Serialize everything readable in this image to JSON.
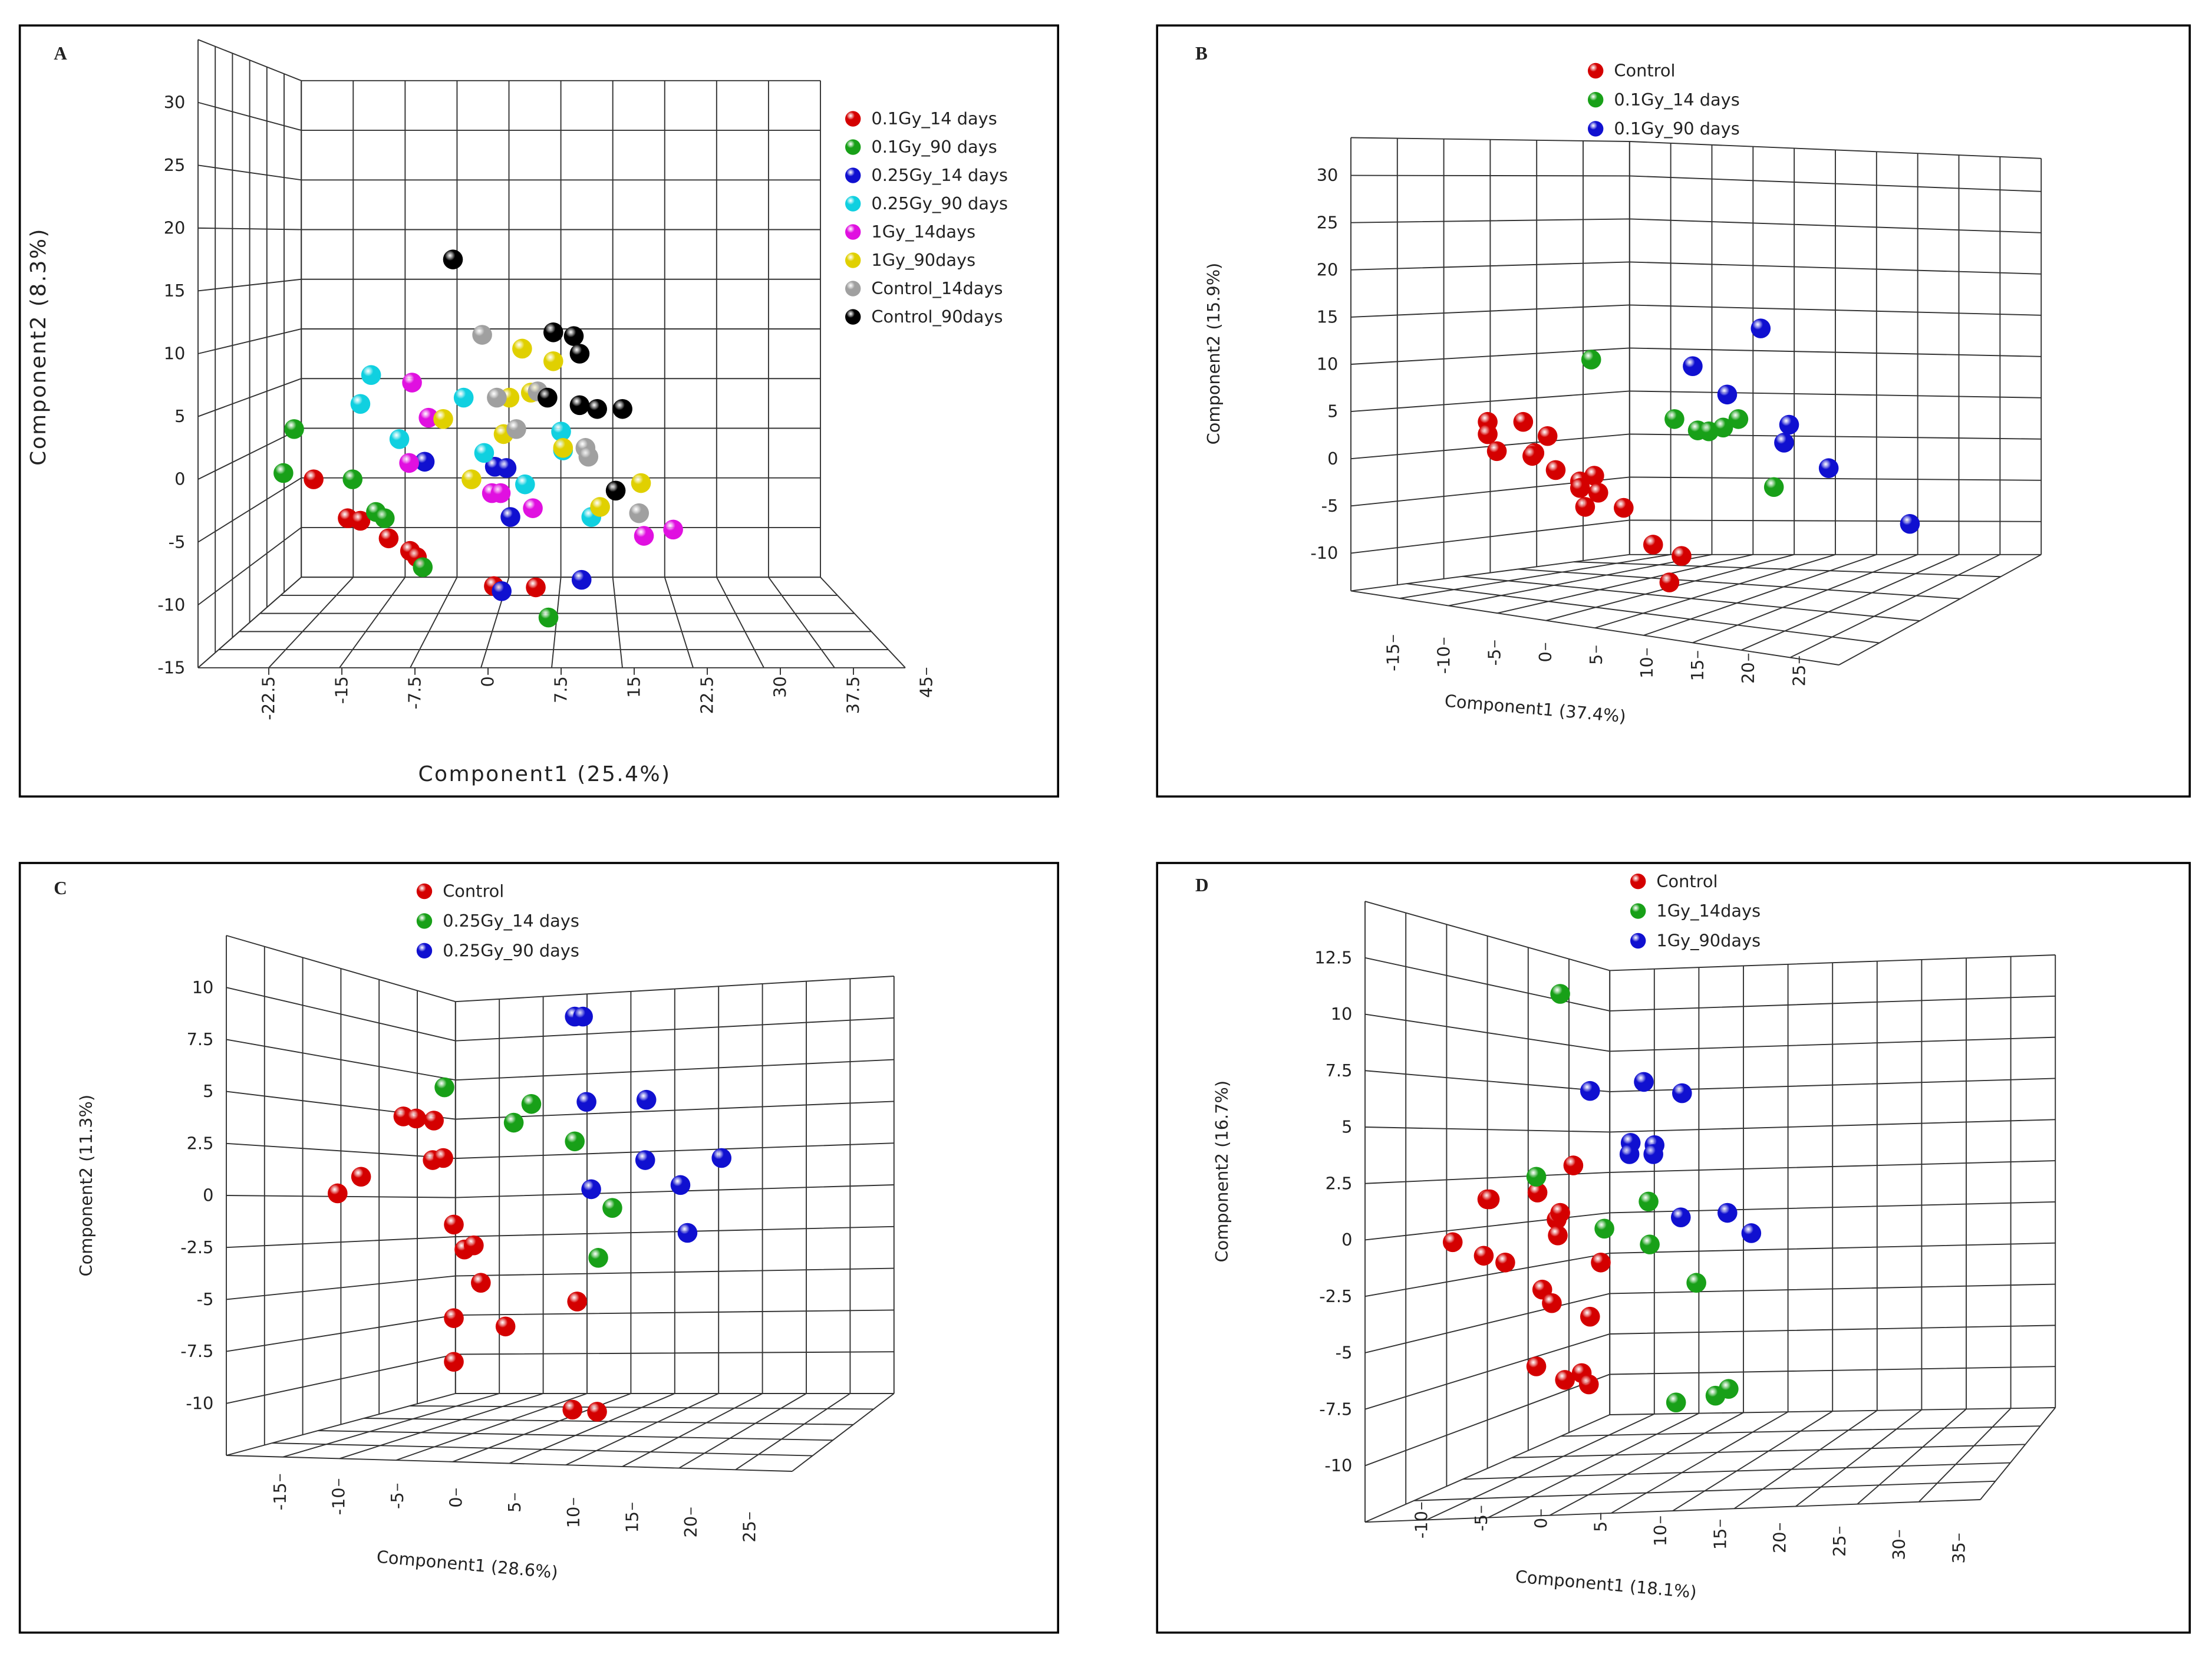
{
  "chart_data": [
    {
      "type": "scatter",
      "label": "A",
      "x_label": "Component1 (25.4%)",
      "y_label": "Component2 (8.3%)",
      "xlim": [
        -25,
        47.5
      ],
      "ylim": [
        -15,
        35
      ],
      "xticks": [
        -22.5,
        -15,
        -7.5,
        0,
        7.5,
        15,
        22.5,
        30,
        37.5,
        45
      ],
      "yticks": [
        -15,
        -10,
        -5,
        0,
        5,
        10,
        15,
        20,
        25,
        30
      ],
      "series": [
        {
          "name": "0.1Gy_14 days",
          "color": "#d40000",
          "x": [
            -17.9,
            -14.4,
            -13.1,
            -10.2,
            -8.0,
            -7.3,
            0.6,
            4.9
          ],
          "y": [
            0.0,
            -3.1,
            -3.3,
            -4.7,
            -5.7,
            -6.2,
            -8.5,
            -8.6
          ]
        },
        {
          "name": "0.1Gy_90 days",
          "color": "#18a018",
          "x": [
            -19.9,
            -21.0,
            -13.9,
            -11.5,
            -10.6,
            -6.7,
            6.2
          ],
          "y": [
            4.0,
            0.5,
            0.0,
            -2.6,
            -3.1,
            -7.0,
            -11.0
          ]
        },
        {
          "name": "0.25Gy_14 days",
          "color": "#1010d0",
          "x": [
            -6.5,
            0.7,
            1.9,
            2.3,
            9.6,
            1.4
          ],
          "y": [
            1.4,
            1.0,
            0.9,
            -3.0,
            -8.0,
            -8.9
          ]
        },
        {
          "name": "0.25Gy_90 days",
          "color": "#10d0e0",
          "x": [
            -12.0,
            -13.1,
            -9.1,
            -2.5,
            -0.4,
            3.8,
            7.5,
            7.7,
            10.6
          ],
          "y": [
            8.3,
            6.0,
            3.2,
            6.5,
            2.1,
            -0.4,
            3.8,
            2.3,
            -3.0
          ]
        },
        {
          "name": "1Gy_14days",
          "color": "#e010e0",
          "x": [
            -7.8,
            -6.1,
            -8.1,
            0.4,
            1.3,
            4.6,
            16.0,
            19.0
          ],
          "y": [
            7.7,
            4.9,
            1.3,
            -1.1,
            -1.1,
            -2.3,
            -4.5,
            -4.0
          ]
        },
        {
          "name": "1Gy_90days",
          "color": "#e0d000",
          "x": [
            -4.6,
            3.5,
            6.7,
            2.2,
            4.4,
            1.6,
            -1.7,
            7.7,
            11.5,
            15.7
          ],
          "y": [
            4.8,
            10.4,
            9.4,
            6.5,
            6.9,
            3.6,
            0.0,
            2.5,
            -2.2,
            -0.3
          ]
        },
        {
          "name": "Control_14days",
          "color": "#a0a0a0",
          "x": [
            -0.6,
            0.9,
            5.1,
            2.9,
            10.0,
            10.3,
            15.5
          ],
          "y": [
            11.5,
            6.5,
            7.0,
            4.0,
            2.5,
            1.8,
            -2.7
          ]
        },
        {
          "name": "Control_90days",
          "color": "#000000",
          "x": [
            -3.6,
            6.7,
            8.8,
            9.4,
            6.1,
            9.4,
            11.2,
            13.8,
            13.1
          ],
          "y": [
            17.5,
            11.7,
            11.4,
            10.0,
            6.5,
            5.9,
            5.6,
            5.6,
            -0.9
          ]
        }
      ]
    },
    {
      "type": "scatter",
      "label": "B",
      "x_label": "Component1 (37.4%)",
      "y_label": "Component2 (15.9%)",
      "xlim": [
        -20,
        40
      ],
      "ylim": [
        -14,
        34
      ],
      "xticks": [
        -15,
        -10,
        -5,
        0,
        5,
        10,
        15,
        20,
        25
      ],
      "yticks": [
        -10,
        -5,
        0,
        5,
        10,
        15,
        20,
        25,
        30
      ],
      "series": [
        {
          "name": "Control",
          "color": "#d40000",
          "x": [
            -5.7,
            -5.7,
            -4.8,
            -2.2,
            0.2,
            -1.1,
            -1.3,
            1.0,
            3.4,
            4.8,
            3.4,
            5.2,
            3.9,
            7.7,
            10.6,
            13.4,
            12.2
          ],
          "y": [
            3.9,
            2.6,
            0.8,
            3.9,
            2.4,
            0.6,
            0.3,
            -1.2,
            -2.4,
            -1.8,
            -3.1,
            -3.6,
            -5.1,
            -5.2,
            -9.1,
            -10.3,
            -13.1
          ]
        },
        {
          "name": "0.1Gy_14 days",
          "color": "#18a018",
          "x": [
            4.5,
            12.7,
            15.0,
            16.1,
            17.5,
            19.0,
            22.5
          ],
          "y": [
            10.5,
            4.2,
            3.0,
            2.9,
            3.3,
            4.2,
            -3.0
          ]
        },
        {
          "name": "0.1Gy_90 days",
          "color": "#1010d0",
          "x": [
            21.2,
            14.5,
            17.9,
            24.0,
            23.5,
            27.9,
            35.9
          ],
          "y": [
            13.8,
            9.8,
            6.8,
            3.6,
            1.7,
            -1.0,
            -6.9
          ]
        }
      ]
    },
    {
      "type": "scatter",
      "label": "C",
      "x_label": "Component1 (28.6%)",
      "y_label": "Component2 (11.3%)",
      "xlim": [
        -20,
        30
      ],
      "ylim": [
        -12.5,
        12.5
      ],
      "xticks": [
        -15,
        -10,
        -5,
        0,
        5,
        10,
        15,
        20,
        25
      ],
      "yticks": [
        -10,
        -7.5,
        -5,
        -2.5,
        0,
        2.5,
        5,
        7.5,
        10
      ],
      "series": [
        {
          "name": "Control",
          "color": "#d40000",
          "x": [
            -10.1,
            -8.1,
            -4.5,
            -3.4,
            -1.9,
            -2.0,
            -1.1,
            -0.2,
            0.7,
            1.5,
            2.1,
            4.2,
            -0.2,
            -0.2,
            10.3,
            9.9,
            12.0
          ],
          "y": [
            0.1,
            0.9,
            3.8,
            3.7,
            3.6,
            1.7,
            1.8,
            -1.4,
            -2.6,
            -2.4,
            -4.2,
            -6.3,
            -5.9,
            -8.0,
            -5.1,
            -10.3,
            -10.4
          ]
        },
        {
          "name": "0.25Gy_14 days",
          "color": "#18a018",
          "x": [
            -1.0,
            6.4,
            4.9,
            10.1,
            13.3,
            12.1
          ],
          "y": [
            5.2,
            4.4,
            3.5,
            2.6,
            -0.6,
            -3.0
          ]
        },
        {
          "name": "0.25Gy_90 days",
          "color": "#1010d0",
          "x": [
            10.1,
            10.8,
            11.1,
            16.2,
            11.5,
            16.1,
            22.6,
            19.1,
            19.7
          ],
          "y": [
            8.6,
            8.6,
            4.5,
            4.6,
            0.3,
            1.7,
            1.8,
            0.5,
            -1.8
          ]
        }
      ]
    },
    {
      "type": "scatter",
      "label": "D",
      "x_label": "Component1 (18.1%)",
      "y_label": "Component2 (16.7%)",
      "xlim": [
        -15,
        40
      ],
      "ylim": [
        -12.5,
        15
      ],
      "xticks": [
        -10,
        -5,
        0,
        5,
        10,
        15,
        20,
        25,
        30,
        35
      ],
      "yticks": [
        -10,
        -7.5,
        -5,
        -2.5,
        0,
        2.5,
        5,
        7.5,
        10,
        12.5
      ],
      "series": [
        {
          "name": "Control",
          "color": "#d40000",
          "x": [
            -7.4,
            -4.5,
            -4.3,
            -4.8,
            -3.0,
            -0.3,
            1.3,
            1.6,
            2.7,
            1.4,
            0.1,
            0.9,
            5.0,
            4.1,
            -0.4,
            2.0,
            3.4,
            4.0
          ],
          "y": [
            -0.1,
            1.8,
            1.8,
            -0.7,
            -1.0,
            2.1,
            0.9,
            1.2,
            3.3,
            0.2,
            -2.2,
            -2.8,
            -1.0,
            -3.4,
            -5.6,
            -6.2,
            -5.9,
            -6.4
          ]
        },
        {
          "name": "1Gy_14days",
          "color": "#18a018",
          "x": [
            1.6,
            -0.4,
            5.3,
            9.1,
            9.0,
            13.0,
            15.7,
            14.6,
            11.3
          ],
          "y": [
            10.9,
            2.8,
            0.5,
            -0.2,
            1.7,
            -1.9,
            -6.6,
            -6.9,
            -7.2
          ]
        },
        {
          "name": "1Gy_90days",
          "color": "#1010d0",
          "x": [
            4.1,
            8.6,
            11.8,
            7.5,
            9.5,
            7.4,
            9.4,
            11.7,
            15.6,
            17.6
          ],
          "y": [
            6.6,
            7.0,
            6.5,
            4.3,
            4.2,
            3.8,
            3.8,
            1.0,
            1.2,
            0.3
          ]
        }
      ]
    }
  ]
}
